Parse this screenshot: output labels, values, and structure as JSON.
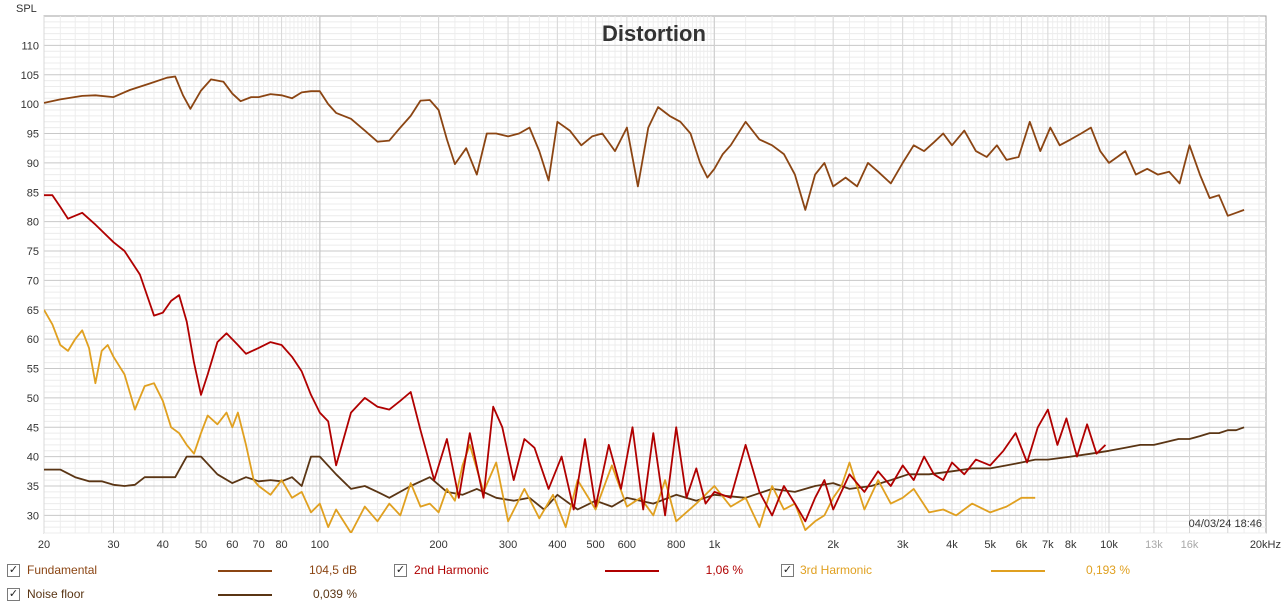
{
  "chart_data": {
    "type": "line",
    "title": "Distortion",
    "ylabel": "SPL",
    "xlabel": "",
    "xscale": "log",
    "xlim": [
      20,
      25000
    ],
    "ylim": [
      27,
      115
    ],
    "grid": true,
    "timestamp": "04/03/24 18:46",
    "y_ticks": [
      110,
      105,
      100,
      95,
      90,
      85,
      80,
      75,
      70,
      65,
      60,
      55,
      50,
      45,
      40,
      35,
      30
    ],
    "x_ticks": [
      {
        "label": "20",
        "value": 20
      },
      {
        "label": "30",
        "value": 30
      },
      {
        "label": "40",
        "value": 40
      },
      {
        "label": "50",
        "value": 50
      },
      {
        "label": "60",
        "value": 60
      },
      {
        "label": "70",
        "value": 70
      },
      {
        "label": "80",
        "value": 80
      },
      {
        "label": "100",
        "value": 100
      },
      {
        "label": "200",
        "value": 200
      },
      {
        "label": "300",
        "value": 300
      },
      {
        "label": "400",
        "value": 400
      },
      {
        "label": "500",
        "value": 500
      },
      {
        "label": "600",
        "value": 600
      },
      {
        "label": "800",
        "value": 800
      },
      {
        "label": "1k",
        "value": 1000
      },
      {
        "label": "2k",
        "value": 2000
      },
      {
        "label": "3k",
        "value": 3000
      },
      {
        "label": "4k",
        "value": 4000
      },
      {
        "label": "5k",
        "value": 5000
      },
      {
        "label": "6k",
        "value": 6000
      },
      {
        "label": "7k",
        "value": 7000
      },
      {
        "label": "8k",
        "value": 8000
      },
      {
        "label": "10k",
        "value": 10000
      },
      {
        "label": "13k",
        "value": 13000,
        "dim": true
      },
      {
        "label": "16k",
        "value": 16000,
        "dim": true
      },
      {
        "label": "20kHz",
        "value": 20000
      }
    ],
    "series": [
      {
        "name": "Fundamental",
        "color": "#8b4513",
        "x": [
          20,
          22,
          25,
          27,
          30,
          33,
          37,
          41,
          43,
          45,
          47,
          50,
          53,
          57,
          60,
          63,
          67,
          70,
          75,
          80,
          85,
          90,
          95,
          100,
          105,
          110,
          120,
          130,
          140,
          150,
          160,
          170,
          180,
          190,
          200,
          210,
          220,
          235,
          250,
          265,
          280,
          300,
          320,
          340,
          360,
          380,
          400,
          430,
          460,
          490,
          520,
          560,
          600,
          640,
          680,
          720,
          770,
          820,
          870,
          920,
          960,
          1000,
          1050,
          1100,
          1200,
          1300,
          1400,
          1500,
          1600,
          1700,
          1800,
          1900,
          2000,
          2150,
          2300,
          2450,
          2600,
          2800,
          3000,
          3200,
          3400,
          3600,
          3800,
          4000,
          4300,
          4600,
          4900,
          5200,
          5500,
          5900,
          6300,
          6700,
          7100,
          7500,
          8000,
          8500,
          9000,
          9500,
          10000,
          10500,
          11000,
          11700,
          12500,
          13300,
          14200,
          15100,
          16000,
          17000,
          18000,
          19000,
          20000,
          21000,
          22000
        ],
        "y": [
          100.2,
          100.8,
          101.4,
          101.5,
          101.2,
          102.4,
          103.5,
          104.5,
          104.7,
          101.5,
          99.2,
          102.3,
          104.2,
          103.8,
          101.8,
          100.5,
          101.2,
          101.2,
          101.7,
          101.5,
          101.0,
          102.0,
          102.2,
          102.2,
          100.0,
          98.5,
          97.5,
          95.5,
          93.6,
          93.8,
          96.0,
          98.0,
          100.6,
          100.7,
          99.0,
          94.0,
          89.8,
          92.5,
          88.0,
          95.0,
          95.0,
          94.5,
          95.0,
          96.0,
          92.0,
          87.0,
          97.0,
          95.5,
          93.0,
          94.5,
          95.0,
          92.0,
          96.0,
          86.0,
          96.0,
          99.5,
          98.0,
          97.0,
          95.0,
          90.0,
          87.5,
          89.0,
          91.5,
          93.0,
          97.0,
          94.0,
          93.0,
          91.5,
          88.0,
          82.0,
          88.0,
          90.0,
          86.0,
          87.5,
          86.0,
          90.0,
          88.5,
          86.5,
          90.0,
          93.0,
          92.0,
          93.5,
          95.0,
          93.0,
          95.5,
          92.0,
          91.0,
          93.0,
          90.5,
          91.0,
          97.0,
          92.0,
          96.0,
          93.0,
          94.0,
          95.0,
          96.0,
          92.0,
          90.0,
          91.0,
          92.0,
          88.0,
          89.0,
          88.0,
          88.5,
          86.5,
          93.0,
          88.0,
          84.0,
          84.5,
          81.0,
          81.5,
          82.0
        ]
      },
      {
        "name": "2nd Harmonic",
        "color": "#b00000",
        "x": [
          20,
          21,
          22,
          23,
          25,
          27,
          30,
          32,
          35,
          38,
          40,
          42,
          44,
          46,
          48,
          50,
          52,
          55,
          58,
          62,
          65,
          70,
          75,
          80,
          85,
          90,
          95,
          100,
          105,
          110,
          120,
          130,
          140,
          150,
          160,
          170,
          180,
          195,
          210,
          225,
          240,
          260,
          275,
          290,
          310,
          330,
          350,
          380,
          410,
          440,
          470,
          500,
          540,
          580,
          620,
          660,
          700,
          750,
          800,
          850,
          900,
          950,
          1000,
          1100,
          1200,
          1300,
          1400,
          1500,
          1600,
          1700,
          1800,
          1900,
          2000,
          2200,
          2400,
          2600,
          2800,
          3000,
          3200,
          3400,
          3600,
          3800,
          4000,
          4300,
          4600,
          5000,
          5400,
          5800,
          6200,
          6600,
          7000,
          7400,
          7800,
          8300,
          8800,
          9300,
          9800
        ],
        "y": [
          84.5,
          84.5,
          82.5,
          80.5,
          81.5,
          79.5,
          76.5,
          75.0,
          71.0,
          64.0,
          64.5,
          66.5,
          67.5,
          63.0,
          56.0,
          50.5,
          54.0,
          59.5,
          61.0,
          59.0,
          57.5,
          58.5,
          59.5,
          59.0,
          57.0,
          54.5,
          50.5,
          47.5,
          46.0,
          38.5,
          47.5,
          50.0,
          48.5,
          48.0,
          49.5,
          51.0,
          44.5,
          36.0,
          43.0,
          33.0,
          44.0,
          33.0,
          48.5,
          45.0,
          36.0,
          43.0,
          41.5,
          34.5,
          40.0,
          31.0,
          43.0,
          31.5,
          42.0,
          34.5,
          45.0,
          31.0,
          44.0,
          30.0,
          45.0,
          33.0,
          38.0,
          32.0,
          34.0,
          33.0,
          42.0,
          34.0,
          30.0,
          35.0,
          32.0,
          29.0,
          33.0,
          36.0,
          31.0,
          37.0,
          34.0,
          37.5,
          35.0,
          38.5,
          36.0,
          40.0,
          37.0,
          36.0,
          39.0,
          37.0,
          39.5,
          38.5,
          41.0,
          44.0,
          39.0,
          45.0,
          48.0,
          42.0,
          46.5,
          40.0,
          45.5,
          40.5,
          42.0
        ]
      },
      {
        "name": "3rd Harmonic",
        "color": "#e0a020",
        "x": [
          20,
          21,
          22,
          23,
          24,
          25,
          26,
          27,
          28,
          29,
          30,
          32,
          34,
          36,
          38,
          40,
          42,
          44,
          46,
          48,
          50,
          52,
          55,
          58,
          60,
          62,
          65,
          68,
          70,
          75,
          80,
          85,
          90,
          95,
          100,
          105,
          110,
          120,
          130,
          140,
          150,
          160,
          170,
          180,
          190,
          200,
          210,
          220,
          230,
          240,
          260,
          280,
          300,
          330,
          360,
          390,
          420,
          450,
          500,
          550,
          600,
          650,
          700,
          750,
          800,
          900,
          1000,
          1100,
          1200,
          1300,
          1400,
          1500,
          1600,
          1700,
          1800,
          1900,
          2000,
          2100,
          2200,
          2400,
          2600,
          2800,
          3000,
          3200,
          3500,
          3800,
          4100,
          4500,
          5000,
          5500,
          6000,
          6500
        ],
        "y": [
          65.0,
          62.5,
          59.0,
          58.0,
          60.0,
          61.5,
          58.5,
          52.5,
          58.0,
          59.0,
          57.0,
          54.0,
          48.0,
          52.0,
          52.5,
          49.5,
          45.0,
          44.0,
          42.0,
          40.5,
          44.0,
          47.0,
          45.5,
          47.5,
          45.0,
          47.5,
          42.0,
          36.0,
          35.0,
          33.5,
          36.0,
          33.0,
          34.0,
          30.5,
          32.0,
          28.0,
          31.0,
          27.0,
          31.5,
          29.0,
          32.0,
          30.0,
          35.5,
          31.5,
          32.0,
          30.5,
          34.5,
          32.5,
          38.5,
          42.0,
          34.0,
          39.0,
          29.0,
          34.5,
          29.5,
          33.5,
          28.0,
          36.0,
          31.0,
          38.5,
          31.5,
          33.0,
          30.0,
          36.0,
          29.0,
          32.0,
          35.0,
          31.5,
          33.0,
          28.0,
          35.0,
          31.0,
          32.0,
          27.5,
          29.0,
          30.0,
          33.0,
          35.0,
          39.0,
          31.0,
          36.0,
          32.0,
          33.0,
          34.5,
          30.5,
          31.0,
          30.0,
          32.0,
          30.5,
          31.5,
          33.0,
          33.0
        ]
      },
      {
        "name": "Noise floor",
        "color": "#5a3514",
        "x": [
          20,
          22,
          24,
          26,
          28,
          30,
          32,
          34,
          36,
          38,
          40,
          43,
          46,
          50,
          55,
          60,
          65,
          70,
          75,
          80,
          85,
          90,
          95,
          100,
          110,
          120,
          130,
          140,
          150,
          170,
          190,
          210,
          230,
          250,
          280,
          310,
          340,
          370,
          400,
          450,
          500,
          550,
          600,
          700,
          800,
          900,
          1000,
          1200,
          1400,
          1600,
          1800,
          2000,
          2200,
          2500,
          2800,
          3100,
          3500,
          4000,
          4500,
          5000,
          5500,
          6000,
          6500,
          7000,
          8000,
          9000,
          10000,
          11000,
          12000,
          13000,
          14000,
          15000,
          16000,
          17000,
          18000,
          19000,
          20000,
          21000,
          22000
        ],
        "y": [
          37.8,
          37.8,
          36.5,
          35.8,
          35.8,
          35.2,
          35.0,
          35.2,
          36.5,
          36.5,
          36.5,
          36.5,
          40.0,
          40.0,
          37.0,
          35.5,
          36.5,
          35.8,
          36.0,
          35.8,
          36.5,
          35.0,
          40.0,
          40.0,
          37.0,
          34.5,
          35.0,
          34.0,
          33.0,
          35.0,
          36.5,
          34.0,
          33.5,
          34.5,
          33.0,
          32.5,
          33.0,
          31.0,
          33.5,
          31.0,
          32.5,
          31.5,
          33.0,
          32.0,
          33.5,
          32.5,
          33.5,
          33.0,
          34.5,
          34.0,
          35.0,
          35.5,
          34.5,
          35.0,
          36.0,
          37.0,
          37.0,
          37.5,
          38.0,
          38.0,
          38.5,
          39.0,
          39.5,
          39.5,
          40.0,
          40.5,
          41.0,
          41.5,
          42.0,
          42.0,
          42.5,
          43.0,
          43.0,
          43.5,
          44.0,
          44.0,
          44.5,
          44.5,
          45.0
        ]
      }
    ]
  },
  "legend": [
    {
      "name": "Fundamental",
      "value": "104,5 dB",
      "color": "#8b4513",
      "checked": true
    },
    {
      "name": "2nd Harmonic",
      "value": "1,06 %",
      "color": "#b00000",
      "checked": true
    },
    {
      "name": "3rd Harmonic",
      "value": "0,193 %",
      "color": "#e0a020",
      "checked": true
    },
    {
      "name": "Noise floor",
      "value": "0,039 %",
      "color": "#5a3514",
      "checked": true
    }
  ]
}
